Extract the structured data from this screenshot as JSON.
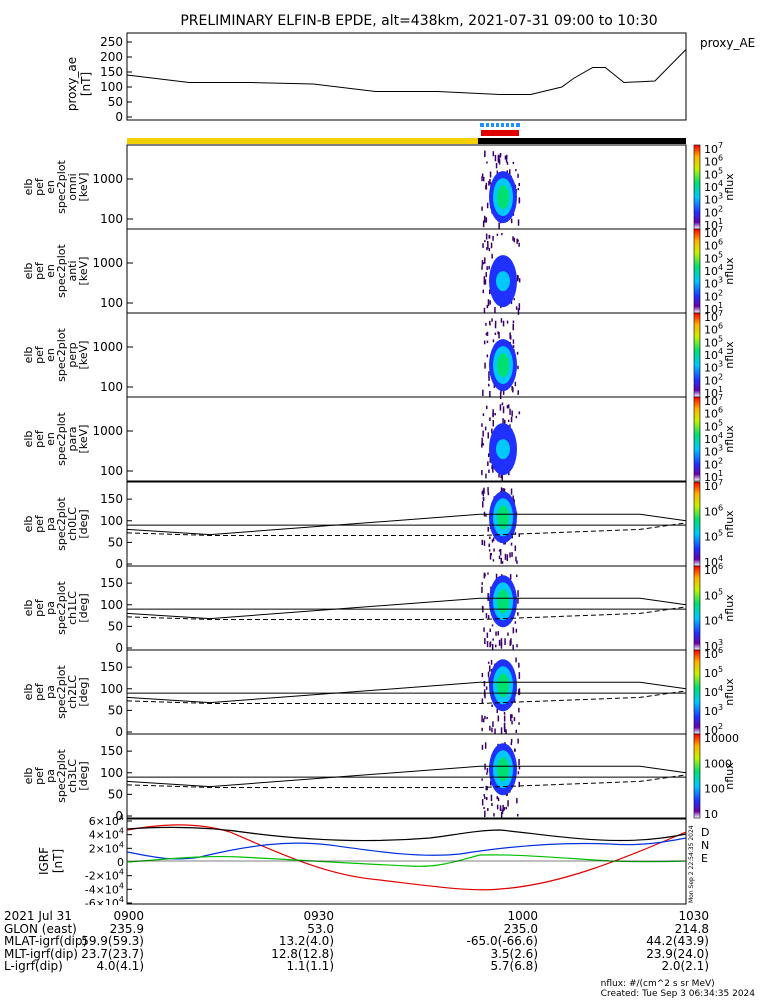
{
  "title": "PRELIMINARY ELFIN-B EPDE, alt=438km, 2021-07-31 09:00 to 10:30",
  "proxy_panel": {
    "ylabel": [
      "proxy_ae",
      "[nT]"
    ],
    "yticks": [
      0,
      50,
      100,
      150,
      200,
      250
    ],
    "legend": "proxy_AE",
    "series": {
      "x_min": [
        0,
        10,
        20,
        30,
        40,
        50,
        60,
        65,
        70,
        72,
        75,
        77,
        80,
        85,
        90
      ],
      "ae": [
        140,
        115,
        115,
        110,
        85,
        85,
        75,
        75,
        100,
        130,
        165,
        165,
        115,
        120,
        225
      ]
    }
  },
  "spec_panels": [
    {
      "name": "spec-omni",
      "ylabel": [
        "elb",
        "pef",
        "en",
        "spec2plot",
        "omni",
        "[keV]"
      ],
      "yticks": [
        "100",
        "1000"
      ],
      "cbar_label": "nflux",
      "cbar_ticks": [
        "10^1",
        "10^2",
        "10^3",
        "10^4",
        "10^5",
        "10^6",
        "10^7"
      ]
    },
    {
      "name": "spec-anti",
      "ylabel": [
        "elb",
        "pef",
        "en",
        "spec2plot",
        "anti",
        "[keV]"
      ],
      "yticks": [
        "100",
        "1000"
      ],
      "cbar_label": "nflux",
      "cbar_ticks": [
        "10^1",
        "10^2",
        "10^3",
        "10^4",
        "10^5",
        "10^6",
        "10^7"
      ]
    },
    {
      "name": "spec-perp",
      "ylabel": [
        "elb",
        "pef",
        "en",
        "spec2plot",
        "perp",
        "[keV]"
      ],
      "yticks": [
        "100",
        "1000"
      ],
      "cbar_label": "nflux",
      "cbar_ticks": [
        "10^1",
        "10^2",
        "10^3",
        "10^4",
        "10^5",
        "10^6",
        "10^7"
      ]
    },
    {
      "name": "spec-para",
      "ylabel": [
        "elb",
        "pef",
        "en",
        "spec2plot",
        "para",
        "[keV]"
      ],
      "yticks": [
        "100",
        "1000"
      ],
      "cbar_label": "nflux",
      "cbar_ticks": [
        "10^1",
        "10^2",
        "10^3",
        "10^4",
        "10^5",
        "10^6",
        "10^7"
      ]
    },
    {
      "name": "pa-ch0",
      "ylabel": [
        "elb",
        "pef",
        "pa",
        "spec2plot",
        "ch0LC",
        "[deg]"
      ],
      "yticks": [
        "0",
        "50",
        "100",
        "150"
      ],
      "cbar_label": "nflux",
      "cbar_ticks": [
        "10^4",
        "10^5",
        "10^6",
        "10^7"
      ]
    },
    {
      "name": "pa-ch1",
      "ylabel": [
        "elb",
        "pef",
        "pa",
        "spec2plot",
        "ch1LC",
        "[deg]"
      ],
      "yticks": [
        "0",
        "50",
        "100",
        "150"
      ],
      "cbar_label": "nflux",
      "cbar_ticks": [
        "10^3",
        "10^4",
        "10^5",
        "10^6"
      ]
    },
    {
      "name": "pa-ch2",
      "ylabel": [
        "elb",
        "pef",
        "pa",
        "spec2plot",
        "ch2LC",
        "[deg]"
      ],
      "yticks": [
        "0",
        "50",
        "100",
        "150"
      ],
      "cbar_label": "nflux",
      "cbar_ticks": [
        "10^2",
        "10^3",
        "10^4",
        "10^5",
        "10^6"
      ]
    },
    {
      "name": "pa-ch3",
      "ylabel": [
        "elb",
        "pef",
        "pa",
        "spec2plot",
        "ch3LC",
        "[deg]"
      ],
      "yticks": [
        "0",
        "50",
        "100",
        "150"
      ],
      "cbar_label": "nflux",
      "cbar_ticks": [
        "10",
        "100",
        "1000",
        "10000"
      ]
    }
  ],
  "igrf_panel": {
    "ylabel": [
      "IGRF",
      "[nT]"
    ],
    "yticks": [
      "-6×10^4",
      "-4×10^4",
      "-2×10^4",
      "0",
      "2×10^4",
      "4×10^4",
      "6×10^4"
    ],
    "legend": [
      {
        "label": "D",
        "color": "#e00000"
      },
      {
        "label": "N",
        "color": "#0030e0"
      },
      {
        "label": "E",
        "color": "#00c000"
      }
    ],
    "side_text": "Mon Sep  2 22:54:35 2024"
  },
  "footer": {
    "rows": [
      {
        "label": "2021 Jul 31",
        "values": [
          "0900",
          "0930",
          "1000",
          "1030"
        ]
      },
      {
        "label": "GLON (east)",
        "values": [
          "235.9",
          "53.0",
          "235.0",
          "214.8"
        ]
      },
      {
        "label": "MLAT-igrf(dip)",
        "values": [
          "59.9(59.3)",
          "13.2(4.0)",
          "-65.0(-66.6)",
          "44.2(43.9)"
        ]
      },
      {
        "label": "MLT-igrf(dip)",
        "values": [
          "23.7(23.7)",
          "12.8(12.8)",
          "3.5(2.6)",
          "23.9(24.0)"
        ]
      },
      {
        "label": "L-igrf(dip)",
        "values": [
          "4.0(4.1)",
          "1.1(1.1)",
          "5.7(6.8)",
          "2.0(2.1)"
        ]
      }
    ],
    "units_note": "nflux: #/(cm^2 s sr MeV)",
    "created": "Created: Tue Sep  3 06:34:35 2024"
  },
  "colors": {
    "state_day": "#f5d000",
    "state_night": "#000000",
    "science_bar": "#e00000",
    "fgm_bar": "#1e90ff"
  }
}
